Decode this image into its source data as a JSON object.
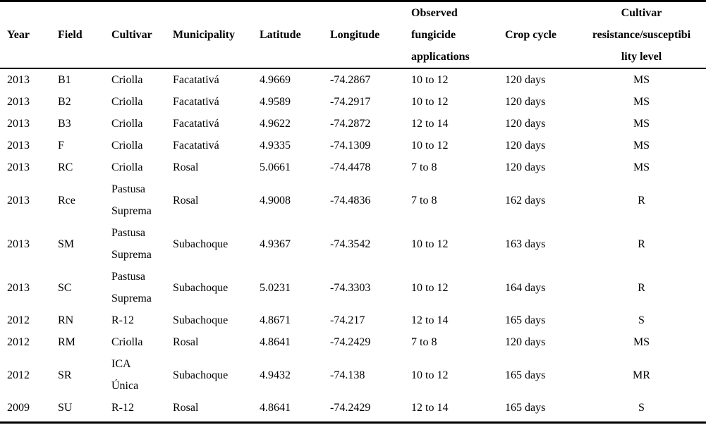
{
  "table": {
    "headers": {
      "year": "Year",
      "field": "Field",
      "cultivar": "Cultivar",
      "municipality": "Municipality",
      "latitude": "Latitude",
      "longitude": "Longitude",
      "fungicide": "Observed\nfungicide\napplications",
      "crop_cycle": "Crop cycle",
      "resistance": "Cultivar\nresistance/susceptibi\nlity level"
    },
    "rows": [
      {
        "year": "2013",
        "field": "B1",
        "cultivar": "Criolla",
        "municipality": "Facatativá",
        "latitude": "4.9669",
        "longitude": "-74.2867",
        "fungicide": "10 to 12",
        "crop_cycle": "120 days",
        "resistance": "MS"
      },
      {
        "year": "2013",
        "field": "B2",
        "cultivar": "Criolla",
        "municipality": "Facatativá",
        "latitude": "4.9589",
        "longitude": "-74.2917",
        "fungicide": "10 to 12",
        "crop_cycle": "120 days",
        "resistance": "MS"
      },
      {
        "year": "2013",
        "field": "B3",
        "cultivar": "Criolla",
        "municipality": "Facatativá",
        "latitude": "4.9622",
        "longitude": "-74.2872",
        "fungicide": "12 to 14",
        "crop_cycle": "120 days",
        "resistance": "MS"
      },
      {
        "year": "2013",
        "field": "F",
        "cultivar": "Criolla",
        "municipality": "Facatativá",
        "latitude": "4.9335",
        "longitude": "-74.1309",
        "fungicide": "10 to 12",
        "crop_cycle": "120 days",
        "resistance": "MS"
      },
      {
        "year": "2013",
        "field": "RC",
        "cultivar": "Criolla",
        "municipality": "Rosal",
        "latitude": "5.0661",
        "longitude": "-74.4478",
        "fungicide": "7 to 8",
        "crop_cycle": "120 days",
        "resistance": "MS"
      },
      {
        "year": "2013",
        "field": "Rce",
        "cultivar": "Pastusa\nSuprema",
        "municipality": "Rosal",
        "latitude": "4.9008",
        "longitude": "-74.4836",
        "fungicide": "7 to 8",
        "crop_cycle": "162 days",
        "resistance": "R"
      },
      {
        "year": "2013",
        "field": "SM",
        "cultivar": "Pastusa\nSuprema",
        "municipality": "Subachoque",
        "latitude": "4.9367",
        "longitude": "-74.3542",
        "fungicide": "10 to 12",
        "crop_cycle": "163 days",
        "resistance": "R"
      },
      {
        "year": "2013",
        "field": "SC",
        "cultivar": "Pastusa\nSuprema",
        "municipality": "Subachoque",
        "latitude": "5.0231",
        "longitude": "-74.3303",
        "fungicide": "10 to 12",
        "crop_cycle": "164 days",
        "resistance": "R"
      },
      {
        "year": "2012",
        "field": "RN",
        "cultivar": "R-12",
        "municipality": "Subachoque",
        "latitude": "4.8671",
        "longitude": "-74.217",
        "fungicide": "12 to 14",
        "crop_cycle": "165 days",
        "resistance": "S"
      },
      {
        "year": "2012",
        "field": "RM",
        "cultivar": "Criolla",
        "municipality": "Rosal",
        "latitude": "4.8641",
        "longitude": "-74.2429",
        "fungicide": "7 to 8",
        "crop_cycle": "120 days",
        "resistance": "MS"
      },
      {
        "year": "2012",
        "field": "SR",
        "cultivar": "ICA\nÚnica",
        "municipality": "Subachoque",
        "latitude": "4.9432",
        "longitude": "-74.138",
        "fungicide": "10 to 12",
        "crop_cycle": "165 days",
        "resistance": "MR"
      },
      {
        "year": "2009",
        "field": "SU",
        "cultivar": "R-12",
        "municipality": "Rosal",
        "latitude": "4.8641",
        "longitude": "-74.2429",
        "fungicide": "12 to 14",
        "crop_cycle": "165 days",
        "resistance": "S"
      }
    ]
  }
}
